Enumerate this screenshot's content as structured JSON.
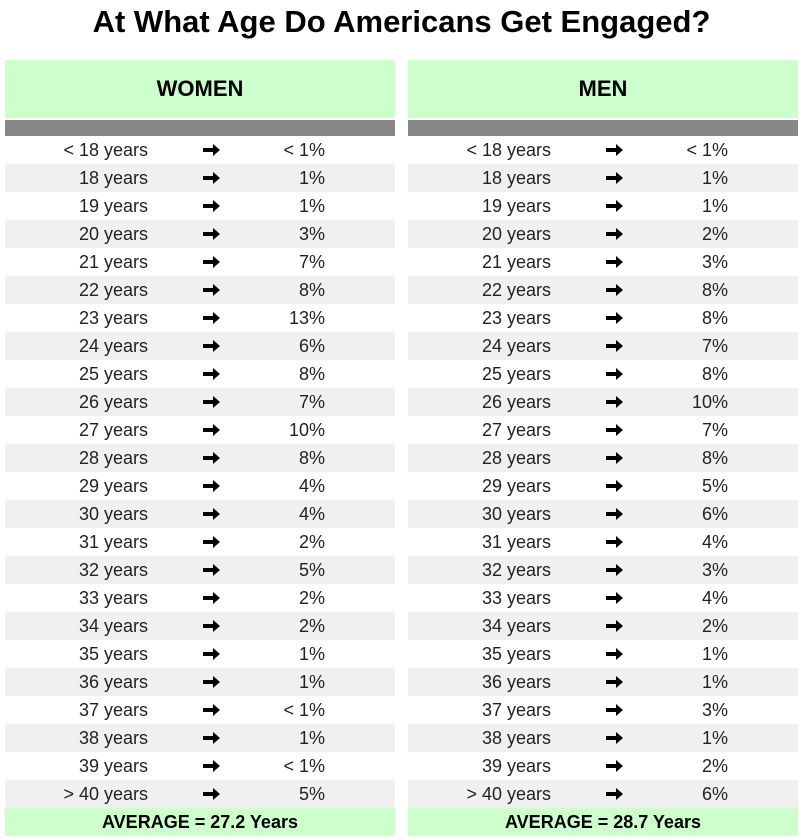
{
  "title": "At What Age Do Americans Get Engaged?",
  "panels": [
    {
      "header": "WOMEN",
      "rows": [
        [
          "< 18 years",
          "< 1%"
        ],
        [
          "18 years",
          "1%"
        ],
        [
          "19 years",
          "1%"
        ],
        [
          "20 years",
          "3%"
        ],
        [
          "21 years",
          "7%"
        ],
        [
          "22 years",
          "8%"
        ],
        [
          "23 years",
          "13%"
        ],
        [
          "24 years",
          "6%"
        ],
        [
          "25 years",
          "8%"
        ],
        [
          "26 years",
          "7%"
        ],
        [
          "27 years",
          "10%"
        ],
        [
          "28 years",
          "8%"
        ],
        [
          "29 years",
          "4%"
        ],
        [
          "30 years",
          "4%"
        ],
        [
          "31 years",
          "2%"
        ],
        [
          "32 years",
          "5%"
        ],
        [
          "33 years",
          "2%"
        ],
        [
          "34 years",
          "2%"
        ],
        [
          "35 years",
          "1%"
        ],
        [
          "36 years",
          "1%"
        ],
        [
          "37 years",
          "< 1%"
        ],
        [
          "38 years",
          "1%"
        ],
        [
          "39 years",
          "< 1%"
        ],
        [
          "> 40 years",
          "5%"
        ]
      ],
      "average": "AVERAGE = 27.2 Years"
    },
    {
      "header": "MEN",
      "rows": [
        [
          "< 18 years",
          "< 1%"
        ],
        [
          "18 years",
          "1%"
        ],
        [
          "19 years",
          "1%"
        ],
        [
          "20 years",
          "2%"
        ],
        [
          "21 years",
          "3%"
        ],
        [
          "22 years",
          "8%"
        ],
        [
          "23 years",
          "8%"
        ],
        [
          "24 years",
          "7%"
        ],
        [
          "25 years",
          "8%"
        ],
        [
          "26 years",
          "10%"
        ],
        [
          "27 years",
          "7%"
        ],
        [
          "28 years",
          "8%"
        ],
        [
          "29 years",
          "5%"
        ],
        [
          "30 years",
          "6%"
        ],
        [
          "31 years",
          "4%"
        ],
        [
          "32 years",
          "3%"
        ],
        [
          "33 years",
          "4%"
        ],
        [
          "34 years",
          "2%"
        ],
        [
          "35 years",
          "1%"
        ],
        [
          "36 years",
          "1%"
        ],
        [
          "37 years",
          "3%"
        ],
        [
          "38 years",
          "1%"
        ],
        [
          "39 years",
          "2%"
        ],
        [
          "> 40 years",
          "6%"
        ]
      ],
      "average": "AVERAGE = 28.7 Years"
    }
  ]
}
